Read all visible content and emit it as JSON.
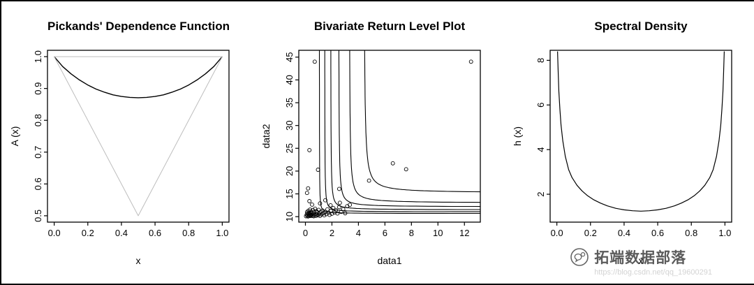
{
  "figure": {
    "background": "#ffffff",
    "frame_color": "#000000",
    "curve_color": "#000000",
    "bounds_color": "#bdbdbd"
  },
  "watermark": {
    "brand": "拓端数据部落",
    "url": "https://blog.csdn.net/qq_19600291",
    "logo": "chat-bubble-icon",
    "brand_color": "#3e3e3e",
    "url_color": "#d3d3d3"
  },
  "chart_data": [
    {
      "id": "pickands",
      "type": "line",
      "title": "Pickands' Dependence Function",
      "xlabel": "x",
      "ylabel": "A (x)",
      "xlim": [
        -0.04,
        1.04
      ],
      "ylim": [
        0.48,
        1.02
      ],
      "grid": false,
      "xticks": [
        {
          "v": 0.0,
          "label": "0.0"
        },
        {
          "v": 0.2,
          "label": "0.2"
        },
        {
          "v": 0.4,
          "label": "0.4"
        },
        {
          "v": 0.6,
          "label": "0.6"
        },
        {
          "v": 0.8,
          "label": "0.8"
        },
        {
          "v": 1.0,
          "label": "1.0"
        }
      ],
      "yticks": [
        {
          "v": 0.5,
          "label": "0.5"
        },
        {
          "v": 0.6,
          "label": "0.6"
        },
        {
          "v": 0.7,
          "label": "0.7"
        },
        {
          "v": 0.8,
          "label": "0.8"
        },
        {
          "v": 0.9,
          "label": "0.9"
        },
        {
          "v": 1.0,
          "label": "1.0"
        }
      ],
      "series": [
        {
          "name": "dependence-function",
          "color": "#000000",
          "width": 1.4,
          "points": [
            [
              0,
              1.0
            ],
            [
              0.05,
              0.969
            ],
            [
              0.1,
              0.946
            ],
            [
              0.15,
              0.927
            ],
            [
              0.2,
              0.911
            ],
            [
              0.25,
              0.898
            ],
            [
              0.3,
              0.888
            ],
            [
              0.35,
              0.88
            ],
            [
              0.4,
              0.875
            ],
            [
              0.45,
              0.872
            ],
            [
              0.5,
              0.871
            ],
            [
              0.55,
              0.872
            ],
            [
              0.6,
              0.875
            ],
            [
              0.65,
              0.88
            ],
            [
              0.7,
              0.888
            ],
            [
              0.75,
              0.898
            ],
            [
              0.8,
              0.911
            ],
            [
              0.85,
              0.927
            ],
            [
              0.9,
              0.946
            ],
            [
              0.95,
              0.969
            ],
            [
              1,
              1.0
            ]
          ]
        },
        {
          "name": "lower-bound",
          "color": "#bdbdbd",
          "width": 1,
          "points": [
            [
              0,
              1.0
            ],
            [
              0.5,
              0.5
            ],
            [
              1,
              1.0
            ]
          ]
        },
        {
          "name": "upper-bound",
          "color": "#bdbdbd",
          "width": 1,
          "points": [
            [
              0,
              1.0
            ],
            [
              1,
              1.0
            ]
          ]
        }
      ]
    },
    {
      "id": "bivariate",
      "type": "scatter",
      "title": "Bivariate Return Level Plot",
      "xlabel": "data1",
      "ylabel": "data2",
      "xlim": [
        -0.5,
        13.2
      ],
      "ylim": [
        8.8,
        46.5
      ],
      "grid": false,
      "xticks": [
        {
          "v": 0,
          "label": "0"
        },
        {
          "v": 2,
          "label": "2"
        },
        {
          "v": 4,
          "label": "4"
        },
        {
          "v": 6,
          "label": "6"
        },
        {
          "v": 8,
          "label": "8"
        },
        {
          "v": 10,
          "label": "10"
        },
        {
          "v": 12,
          "label": "12"
        }
      ],
      "yticks": [
        {
          "v": 10,
          "label": "10"
        },
        {
          "v": 15,
          "label": "15"
        },
        {
          "v": 20,
          "label": "20"
        },
        {
          "v": 25,
          "label": "25"
        },
        {
          "v": 30,
          "label": "30"
        },
        {
          "v": 35,
          "label": "35"
        },
        {
          "v": 40,
          "label": "40"
        },
        {
          "v": 45,
          "label": "45"
        }
      ],
      "contours": [
        {
          "x_asym": 1.05,
          "y_asym": 10.7,
          "level_k": 0.22
        },
        {
          "x_asym": 1.45,
          "y_asym": 11.05,
          "level_k": 0.38
        },
        {
          "x_asym": 1.9,
          "y_asym": 11.5,
          "level_k": 0.6
        },
        {
          "x_asym": 2.5,
          "y_asym": 12.15,
          "level_k": 0.9
        },
        {
          "x_asym": 3.3,
          "y_asym": 13.0,
          "level_k": 1.35
        },
        {
          "x_asym": 4.4,
          "y_asym": 15.2,
          "level_k": 2.2
        }
      ],
      "scatter": [
        [
          0.05,
          10.1
        ],
        [
          0.1,
          10.45
        ],
        [
          0.12,
          11.0
        ],
        [
          0.15,
          10.2
        ],
        [
          0.18,
          10.75
        ],
        [
          0.2,
          10.05
        ],
        [
          0.22,
          11.3
        ],
        [
          0.25,
          10.5
        ],
        [
          0.28,
          10.15
        ],
        [
          0.3,
          10.9
        ],
        [
          0.33,
          10.3
        ],
        [
          0.35,
          11.55
        ],
        [
          0.38,
          10.65
        ],
        [
          0.4,
          10.15
        ],
        [
          0.43,
          11.1
        ],
        [
          0.46,
          10.4
        ],
        [
          0.5,
          10.8
        ],
        [
          0.53,
          10.2
        ],
        [
          0.56,
          11.45
        ],
        [
          0.6,
          10.55
        ],
        [
          0.63,
          10.1
        ],
        [
          0.66,
          11.0
        ],
        [
          0.7,
          10.35
        ],
        [
          0.73,
          11.75
        ],
        [
          0.77,
          10.6
        ],
        [
          0.8,
          10.2
        ],
        [
          0.83,
          11.2
        ],
        [
          0.87,
          10.5
        ],
        [
          0.9,
          10.95
        ],
        [
          0.95,
          10.3
        ],
        [
          1.0,
          11.5
        ],
        [
          1.05,
          10.65
        ],
        [
          1.1,
          10.2
        ],
        [
          1.16,
          11.05
        ],
        [
          1.22,
          10.5
        ],
        [
          1.3,
          11.35
        ],
        [
          1.36,
          10.75
        ],
        [
          1.42,
          10.3
        ],
        [
          1.5,
          11.05
        ],
        [
          1.58,
          10.55
        ],
        [
          1.66,
          11.6
        ],
        [
          1.74,
          10.85
        ],
        [
          1.82,
          10.4
        ],
        [
          1.92,
          11.25
        ],
        [
          2.0,
          10.65
        ],
        [
          2.1,
          11.9
        ],
        [
          2.2,
          10.95
        ],
        [
          2.3,
          11.45
        ],
        [
          2.42,
          10.7
        ],
        [
          2.55,
          12.1
        ],
        [
          2.7,
          11.05
        ],
        [
          2.85,
          11.65
        ],
        [
          3.0,
          10.75
        ],
        [
          3.15,
          12.3
        ],
        [
          3.35,
          12.6
        ],
        [
          0.5,
          12.65
        ],
        [
          1.1,
          12.9
        ],
        [
          1.9,
          12.5
        ],
        [
          2.6,
          13.05
        ],
        [
          0.3,
          13.4
        ],
        [
          1.5,
          13.6
        ],
        [
          0.7,
          44.0
        ],
        [
          12.5,
          44.0
        ],
        [
          0.3,
          24.6
        ],
        [
          0.95,
          20.3
        ],
        [
          6.6,
          21.7
        ],
        [
          7.6,
          20.4
        ],
        [
          4.8,
          17.9
        ],
        [
          2.55,
          16.1
        ],
        [
          0.2,
          16.2
        ],
        [
          0.12,
          15.2
        ]
      ]
    },
    {
      "id": "spectral",
      "type": "line",
      "title": "Spectral Density",
      "xlabel": "x",
      "ylabel": "h (x)",
      "xlim": [
        -0.04,
        1.04
      ],
      "ylim": [
        0.75,
        8.45
      ],
      "grid": false,
      "xticks": [
        {
          "v": 0.0,
          "label": "0.0"
        },
        {
          "v": 0.2,
          "label": "0.2"
        },
        {
          "v": 0.4,
          "label": "0.4"
        },
        {
          "v": 0.6,
          "label": "0.6"
        },
        {
          "v": 0.8,
          "label": "0.8"
        },
        {
          "v": 1.0,
          "label": "1.0"
        }
      ],
      "yticks": [
        {
          "v": 2,
          "label": "2"
        },
        {
          "v": 4,
          "label": "4"
        },
        {
          "v": 6,
          "label": "6"
        },
        {
          "v": 8,
          "label": "8"
        }
      ],
      "series": [
        {
          "name": "spectral-density",
          "color": "#000000",
          "width": 1.2,
          "points": [
            [
              0.004,
              8.4
            ],
            [
              0.008,
              7.4
            ],
            [
              0.012,
              6.6
            ],
            [
              0.018,
              5.8
            ],
            [
              0.025,
              5.1
            ],
            [
              0.035,
              4.4
            ],
            [
              0.05,
              3.7
            ],
            [
              0.07,
              3.1
            ],
            [
              0.09,
              2.75
            ],
            [
              0.12,
              2.4
            ],
            [
              0.15,
              2.15
            ],
            [
              0.18,
              1.95
            ],
            [
              0.22,
              1.75
            ],
            [
              0.26,
              1.6
            ],
            [
              0.3,
              1.48
            ],
            [
              0.35,
              1.37
            ],
            [
              0.4,
              1.3
            ],
            [
              0.45,
              1.26
            ],
            [
              0.5,
              1.24
            ],
            [
              0.55,
              1.26
            ],
            [
              0.6,
              1.3
            ],
            [
              0.65,
              1.37
            ],
            [
              0.7,
              1.48
            ],
            [
              0.74,
              1.6
            ],
            [
              0.78,
              1.75
            ],
            [
              0.82,
              1.95
            ],
            [
              0.85,
              2.15
            ],
            [
              0.88,
              2.4
            ],
            [
              0.91,
              2.75
            ],
            [
              0.93,
              3.1
            ],
            [
              0.95,
              3.7
            ],
            [
              0.965,
              4.4
            ],
            [
              0.975,
              5.1
            ],
            [
              0.982,
              5.8
            ],
            [
              0.988,
              6.6
            ],
            [
              0.992,
              7.4
            ],
            [
              0.996,
              8.4
            ]
          ]
        }
      ]
    }
  ]
}
